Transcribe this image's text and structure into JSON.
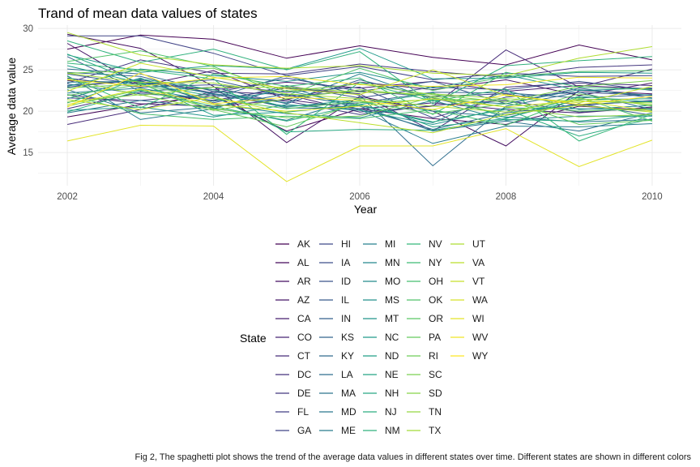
{
  "chart_data": {
    "type": "line",
    "title": "Trand of mean data values of states",
    "xlabel": "Year",
    "ylabel": "Average data value",
    "x": [
      2002,
      2003,
      2004,
      2005,
      2006,
      2007,
      2008,
      2009,
      2010
    ],
    "x_ticks": [
      2002,
      2004,
      2006,
      2008,
      2010
    ],
    "y_ticks": [
      15,
      20,
      25,
      30
    ],
    "xlim": [
      2001.6,
      2010.4
    ],
    "ylim": [
      11,
      30.4
    ],
    "grid": true,
    "legend_title": "State",
    "legend_position": "bottom",
    "caption": "Fig 2, The spaghetti plot shows the trend of the average data values in different states over time. Different states are shown in different colors",
    "series": [
      {
        "name": "AK",
        "values": [
          27.5,
          29.2,
          28.7,
          26.4,
          27.9,
          26.5,
          25.6,
          28.0,
          26.2
        ]
      },
      {
        "name": "AL",
        "values": [
          19.3,
          20.8,
          21.9,
          17.6,
          20.3,
          19.1,
          18.4,
          20.6,
          20.1
        ]
      },
      {
        "name": "AR",
        "values": [
          29.3,
          27.6,
          23.0,
          16.2,
          21.8,
          20.0,
          15.8,
          22.5,
          22.1
        ]
      },
      {
        "name": "AZ",
        "values": [
          28.2,
          23.1,
          24.9,
          21.4,
          23.5,
          22.6,
          23.8,
          21.9,
          23.4
        ]
      },
      {
        "name": "CA",
        "values": [
          23.7,
          23.4,
          22.6,
          23.5,
          22.8,
          23.6,
          22.4,
          23.1,
          22.7
        ]
      },
      {
        "name": "CO",
        "values": [
          22.0,
          20.9,
          20.6,
          21.4,
          20.3,
          21.0,
          20.2,
          19.8,
          20.5
        ]
      },
      {
        "name": "CT",
        "values": [
          18.4,
          20.2,
          22.4,
          22.0,
          19.9,
          20.6,
          27.4,
          22.9,
          25.1
        ]
      },
      {
        "name": "DC",
        "values": [
          20.3,
          22.3,
          21.3,
          22.8,
          22.1,
          17.6,
          22.9,
          23.4,
          23.1
        ]
      },
      {
        "name": "DE",
        "values": [
          23.4,
          26.2,
          24.6,
          24.5,
          25.7,
          24.8,
          24.1,
          25.3,
          25.6
        ]
      },
      {
        "name": "FL",
        "values": [
          21.6,
          21.3,
          22.1,
          21.2,
          19.6,
          20.7,
          21.3,
          19.9,
          20.4
        ]
      },
      {
        "name": "GA",
        "values": [
          29.1,
          29.1,
          27.0,
          24.3,
          25.4,
          23.8,
          24.6,
          24.2,
          24.3
        ]
      },
      {
        "name": "HI",
        "values": [
          22.9,
          23.8,
          22.2,
          24.0,
          22.4,
          21.8,
          22.1,
          20.7,
          21.3
        ]
      },
      {
        "name": "IA",
        "values": [
          24.0,
          22.9,
          23.2,
          22.3,
          22.9,
          19.2,
          21.7,
          22.3,
          21.9
        ]
      },
      {
        "name": "ID",
        "values": [
          23.1,
          23.7,
          21.0,
          23.1,
          21.6,
          22.9,
          22.6,
          23.6,
          22.5
        ]
      },
      {
        "name": "IL",
        "values": [
          24.5,
          23.2,
          23.8,
          21.8,
          22.4,
          23.6,
          20.9,
          22.8,
          21.6
        ]
      },
      {
        "name": "IN",
        "values": [
          26.6,
          22.4,
          22.9,
          20.9,
          23.8,
          21.6,
          19.5,
          20.9,
          19.5
        ]
      },
      {
        "name": "KS",
        "values": [
          24.7,
          24.2,
          22.0,
          20.6,
          21.0,
          22.3,
          22.2,
          21.6,
          22.0
        ]
      },
      {
        "name": "KY",
        "values": [
          25.1,
          24.5,
          22.4,
          20.4,
          20.3,
          17.8,
          19.8,
          20.8,
          21.2
        ]
      },
      {
        "name": "LA",
        "values": [
          23.3,
          22.1,
          21.6,
          24.3,
          21.9,
          13.4,
          20.6,
          22.3,
          20.2
        ]
      },
      {
        "name": "MA",
        "values": [
          22.6,
          19.8,
          20.5,
          22.1,
          20.6,
          17.6,
          18.8,
          17.6,
          19.8
        ]
      },
      {
        "name": "MD",
        "values": [
          19.8,
          21.3,
          20.4,
          18.9,
          21.6,
          20.0,
          19.3,
          18.7,
          19.0
        ]
      },
      {
        "name": "ME",
        "values": [
          24.3,
          19.0,
          20.3,
          23.0,
          20.2,
          16.1,
          18.2,
          18.1,
          18.5
        ]
      },
      {
        "name": "MI",
        "values": [
          23.5,
          23.6,
          22.1,
          21.0,
          24.5,
          21.4,
          20.9,
          22.6,
          21.9
        ]
      },
      {
        "name": "MN",
        "values": [
          22.2,
          22.8,
          21.2,
          22.5,
          20.7,
          18.6,
          22.5,
          20.2,
          20.7
        ]
      },
      {
        "name": "MO",
        "values": [
          21.5,
          24.0,
          20.9,
          19.7,
          19.2,
          21.3,
          18.9,
          19.4,
          19.4
        ]
      },
      {
        "name": "MS",
        "values": [
          23.0,
          25.1,
          24.3,
          23.6,
          24.7,
          22.8,
          24.4,
          22.5,
          22.8
        ]
      },
      {
        "name": "MT",
        "values": [
          20.1,
          20.5,
          19.3,
          20.8,
          20.1,
          18.4,
          20.4,
          20.3,
          20.1
        ]
      },
      {
        "name": "NC",
        "values": [
          26.8,
          24.7,
          25.5,
          25.1,
          27.6,
          23.9,
          24.0,
          24.7,
          24.6
        ]
      },
      {
        "name": "ND",
        "values": [
          25.5,
          23.4,
          19.5,
          19.9,
          20.8,
          22.2,
          19.2,
          21.4,
          21.5
        ]
      },
      {
        "name": "NE",
        "values": [
          21.0,
          23.9,
          22.6,
          20.5,
          21.4,
          18.1,
          19.1,
          21.8,
          21.1
        ]
      },
      {
        "name": "NH",
        "values": [
          26.9,
          23.4,
          21.8,
          17.5,
          17.8,
          17.7,
          19.0,
          18.8,
          19.6
        ]
      },
      {
        "name": "NJ",
        "values": [
          19.9,
          22.5,
          20.6,
          18.8,
          20.8,
          18.7,
          20.2,
          17.0,
          19.1
        ]
      },
      {
        "name": "NM",
        "values": [
          28.5,
          25.9,
          27.5,
          25.0,
          27.2,
          20.9,
          25.5,
          26.1,
          26.6
        ]
      },
      {
        "name": "NV",
        "values": [
          25.8,
          25.0,
          23.9,
          17.2,
          23.5,
          21.2,
          22.7,
          16.4,
          19.6
        ]
      },
      {
        "name": "NY",
        "values": [
          24.2,
          20.4,
          24.5,
          23.0,
          24.0,
          19.6,
          24.7,
          22.9,
          22.6
        ]
      },
      {
        "name": "OH",
        "values": [
          22.0,
          19.7,
          19.0,
          19.4,
          19.1,
          20.2,
          18.3,
          21.7,
          18.8
        ]
      },
      {
        "name": "OK",
        "values": [
          26.0,
          27.3,
          25.4,
          21.9,
          25.2,
          22.5,
          24.2,
          24.8,
          24.9
        ]
      },
      {
        "name": "OR",
        "values": [
          21.9,
          23.2,
          21.5,
          20.3,
          21.2,
          19.7,
          20.9,
          20.0,
          20.3
        ]
      },
      {
        "name": "PA",
        "values": [
          22.8,
          23.3,
          20.2,
          18.1,
          21.0,
          21.4,
          21.4,
          18.4,
          18.9
        ]
      },
      {
        "name": "RI",
        "values": [
          20.6,
          22.6,
          20.3,
          19.2,
          19.4,
          21.7,
          19.5,
          22.1,
          20.6
        ]
      },
      {
        "name": "SC",
        "values": [
          24.6,
          24.9,
          25.2,
          22.4,
          23.3,
          22.0,
          21.1,
          23.0,
          23.7
        ]
      },
      {
        "name": "SD",
        "values": [
          21.1,
          22.0,
          20.1,
          21.5,
          22.6,
          21.8,
          20.5,
          19.3,
          19.6
        ]
      },
      {
        "name": "TN",
        "values": [
          23.9,
          21.9,
          22.9,
          22.9,
          22.3,
          22.1,
          21.5,
          21.2,
          21.0
        ]
      },
      {
        "name": "TX",
        "values": [
          24.6,
          23.5,
          23.4,
          22.1,
          21.5,
          20.6,
          19.9,
          21.5,
          20.8
        ]
      },
      {
        "name": "UT",
        "values": [
          29.5,
          26.8,
          25.6,
          25.2,
          25.5,
          24.6,
          24.3,
          26.4,
          27.8
        ]
      },
      {
        "name": "VA",
        "values": [
          21.4,
          20.2,
          21.7,
          19.8,
          18.6,
          17.4,
          19.6,
          20.7,
          19.9
        ]
      },
      {
        "name": "VT",
        "values": [
          22.4,
          25.8,
          24.1,
          22.7,
          22.0,
          25.0,
          21.9,
          21.0,
          23.0
        ]
      },
      {
        "name": "WA",
        "values": [
          20.8,
          22.7,
          20.8,
          20.0,
          20.6,
          21.5,
          20.5,
          21.3,
          20.0
        ]
      },
      {
        "name": "WI",
        "values": [
          16.4,
          18.3,
          18.2,
          11.5,
          15.8,
          15.8,
          17.9,
          13.3,
          16.5
        ]
      },
      {
        "name": "WV",
        "values": [
          23.8,
          23.0,
          24.0,
          24.2,
          23.2,
          23.0,
          23.2,
          24.1,
          24.0
        ]
      },
      {
        "name": "WY",
        "values": [
          20.5,
          24.6,
          20.9,
          21.7,
          21.3,
          20.2,
          22.0,
          20.8,
          21.8
        ]
      }
    ]
  }
}
